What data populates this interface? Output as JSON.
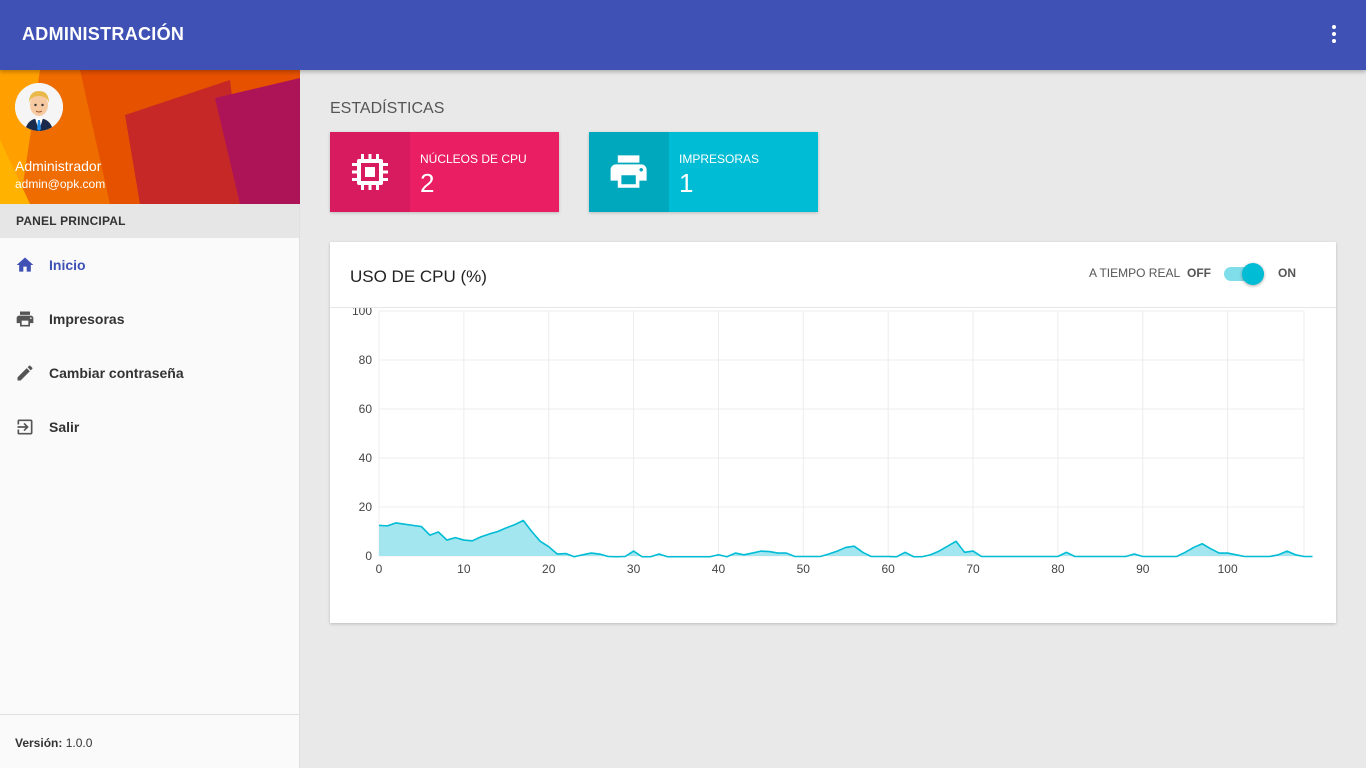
{
  "app": {
    "title": "ADMINISTRACIÓN"
  },
  "header": {
    "menu_icon": "more-vert-icon"
  },
  "user": {
    "name": "Administrador",
    "email": "admin@opk.com"
  },
  "sidebar": {
    "section_label": "PANEL PRINCIPAL",
    "items": [
      {
        "label": "Inicio",
        "icon": "home-icon",
        "active": true
      },
      {
        "label": "Impresoras",
        "icon": "printer-icon",
        "active": false
      },
      {
        "label": "Cambiar contraseña",
        "icon": "pencil-icon",
        "active": false
      },
      {
        "label": "Salir",
        "icon": "exit-icon",
        "active": false
      }
    ],
    "version_label": "Versión:",
    "version_value": "1.0.0"
  },
  "main": {
    "stats_title": "ESTADÍSTICAS",
    "cards": [
      {
        "label": "NÚCLEOS DE CPU",
        "value": "2",
        "icon": "cpu-chip-icon",
        "color": "#e91e63",
        "icon_bg": "#d81b5e"
      },
      {
        "label": "IMPRESORAS",
        "value": "1",
        "icon": "printer-icon",
        "color": "#00bcd4",
        "icon_bg": "#00a8be"
      }
    ],
    "chart_card": {
      "title": "USO DE CPU (%)",
      "realtime_label": "A TIEMPO REAL",
      "off_label": "OFF",
      "on_label": "ON",
      "realtime_on": true
    }
  },
  "colors": {
    "primary": "#3f51b5",
    "accent": "#00bcd4",
    "pink": "#e91e63",
    "area_fill": "#a3e6f0"
  },
  "chart_data": {
    "type": "area",
    "title": "",
    "xlabel": "",
    "ylabel": "",
    "xlim": [
      0,
      109
    ],
    "ylim": [
      0,
      100
    ],
    "xticks": [
      0,
      10,
      20,
      30,
      40,
      50,
      60,
      70,
      80,
      90,
      100
    ],
    "yticks": [
      0,
      20,
      40,
      60,
      80,
      100
    ],
    "grid": true,
    "series": [
      {
        "values": [
          12.5,
          12.3,
          13.5,
          13,
          12.5,
          12,
          8.5,
          9.8,
          6.5,
          7.5,
          6.5,
          6.2,
          7.8,
          9,
          10,
          11.5,
          12.8,
          14.5,
          10,
          6,
          3.8,
          0.8,
          1,
          -0.5,
          0.5,
          1.2,
          0.8,
          -0.2,
          -0.3,
          -0.2,
          2,
          -0.3,
          -0.3,
          0.8,
          -0.3,
          -0.3,
          -0.3,
          -0.3,
          -0.3,
          -0.3,
          0.5,
          -0.3,
          1.2,
          0.5,
          1.2,
          2,
          1.8,
          1.2,
          1.2,
          -0.2,
          -0.2,
          -0.2,
          -0.2,
          0.8,
          2,
          3.5,
          4,
          1.5,
          -0.2,
          -0.2,
          -0.2,
          -0.3,
          1.5,
          -0.3,
          -0.3,
          0.5,
          2,
          4,
          6,
          1.5,
          2,
          -0.2,
          -0.2,
          -0.2,
          -0.2,
          -0.2,
          -0.2,
          -0.2,
          -0.2,
          -0.2,
          -0.2,
          1.5,
          -0.2,
          -0.2,
          -0.2,
          -0.2,
          -0.2,
          -0.2,
          -0.2,
          0.8,
          -0.2,
          -0.2,
          -0.2,
          -0.2,
          -0.2,
          1.5,
          3.5,
          5,
          3,
          1.2,
          1.2,
          0.5,
          -0.2,
          -0.2,
          -0.2,
          -0.2,
          0.5,
          2,
          0.5,
          -0.2,
          -0.2
        ]
      }
    ]
  }
}
